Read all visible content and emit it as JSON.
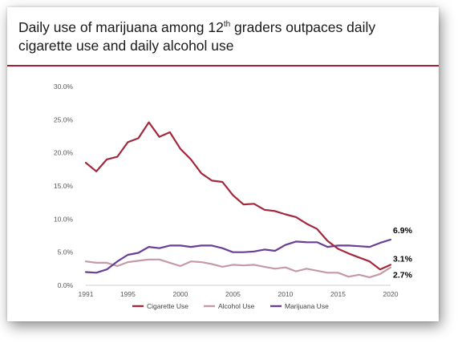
{
  "title": {
    "pre": "Daily use of marijuana among 12",
    "sup": "th",
    "post": " graders outpaces daily cigarette use and daily alcohol use"
  },
  "colors": {
    "accent_rule": "#9b2335",
    "cigarette": "#a1283d",
    "alcohol": "#c49aa6",
    "marijuana": "#6a3e95"
  },
  "chart_data": {
    "type": "line",
    "title": "Daily use of marijuana among 12th graders outpaces daily cigarette use and daily alcohol use",
    "xlabel": "",
    "ylabel": "",
    "x_range": [
      1991,
      2020
    ],
    "ylim": [
      0,
      30
    ],
    "y_unit": "%",
    "x_ticks": [
      "1991",
      "1995",
      "2000",
      "2005",
      "2010",
      "2015",
      "2020"
    ],
    "y_ticks": [
      "0.0%",
      "5.0%",
      "10.0%",
      "15.0%",
      "20.0%",
      "25.0%",
      "30.0%"
    ],
    "grid": false,
    "legend_position": "bottom",
    "x": [
      1991,
      1992,
      1993,
      1994,
      1995,
      1996,
      1997,
      1998,
      1999,
      2000,
      2001,
      2002,
      2003,
      2004,
      2005,
      2006,
      2007,
      2008,
      2009,
      2010,
      2011,
      2012,
      2013,
      2014,
      2015,
      2016,
      2017,
      2018,
      2019,
      2020
    ],
    "series": [
      {
        "name": "Cigarette Use",
        "color": "#a1283d",
        "values": [
          18.5,
          17.2,
          19.0,
          19.4,
          21.6,
          22.2,
          24.6,
          22.4,
          23.1,
          20.6,
          19.0,
          16.9,
          15.8,
          15.6,
          13.6,
          12.2,
          12.3,
          11.4,
          11.2,
          10.7,
          10.3,
          9.3,
          8.5,
          6.7,
          5.5,
          4.8,
          4.2,
          3.6,
          2.4,
          3.1
        ],
        "end_label": "3.1%"
      },
      {
        "name": "Alcohol Use",
        "color": "#c49aa6",
        "values": [
          3.6,
          3.4,
          3.4,
          2.9,
          3.5,
          3.7,
          3.9,
          3.9,
          3.4,
          2.9,
          3.6,
          3.5,
          3.2,
          2.8,
          3.1,
          3.0,
          3.1,
          2.8,
          2.5,
          2.7,
          2.1,
          2.5,
          2.2,
          1.9,
          1.9,
          1.3,
          1.6,
          1.2,
          1.7,
          2.7
        ],
        "end_label": "2.7%"
      },
      {
        "name": "Marijuana Use",
        "color": "#6a3e95",
        "values": [
          2.0,
          1.9,
          2.4,
          3.6,
          4.6,
          4.9,
          5.8,
          5.6,
          6.0,
          6.0,
          5.8,
          6.0,
          6.0,
          5.6,
          5.0,
          5.0,
          5.1,
          5.4,
          5.2,
          6.1,
          6.6,
          6.5,
          6.5,
          5.8,
          6.0,
          6.0,
          5.9,
          5.8,
          6.4,
          6.9
        ],
        "end_label": "6.9%"
      }
    ]
  }
}
